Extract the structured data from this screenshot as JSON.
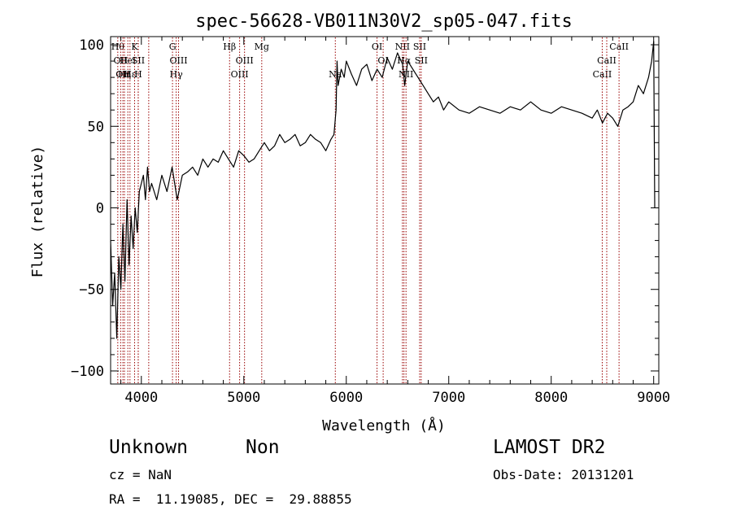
{
  "chart_data": {
    "type": "line",
    "title": "spec-56628-VB011N30V2_sp05-047.fits",
    "xlabel": "Wavelength (Å)",
    "ylabel": "Flux (relative)",
    "xlim": [
      3700,
      9050
    ],
    "ylim": [
      -108,
      105
    ],
    "xticks": [
      {
        "value": 4000,
        "label": "4000"
      },
      {
        "value": 5000,
        "label": "5000"
      },
      {
        "value": 6000,
        "label": "6000"
      },
      {
        "value": 7000,
        "label": "7000"
      },
      {
        "value": 8000,
        "label": "8000"
      },
      {
        "value": 9000,
        "label": "9000"
      }
    ],
    "yticks": [
      {
        "value": -100,
        "label": "−100"
      },
      {
        "value": -50,
        "label": "−50"
      },
      {
        "value": 0,
        "label": "0"
      },
      {
        "value": 50,
        "label": "50"
      },
      {
        "value": 100,
        "label": "100"
      }
    ],
    "line_color": "#000000",
    "marker_color": "#990000",
    "series": [
      {
        "x": [
          3700,
          3720,
          3740,
          3760,
          3780,
          3800,
          3820,
          3840,
          3860,
          3880,
          3900,
          3920,
          3940,
          3960,
          3980,
          4000,
          4020,
          4040,
          4060,
          4080,
          4100,
          4150,
          4200,
          4250,
          4300,
          4350,
          4400,
          4450,
          4500,
          4550,
          4600,
          4650,
          4700,
          4750,
          4800,
          4850,
          4900,
          4950,
          5000,
          5050,
          5100,
          5150,
          5200,
          5250,
          5300,
          5350,
          5400,
          5450,
          5500,
          5550,
          5600,
          5650,
          5700,
          5750,
          5800,
          5850,
          5880,
          5900,
          5910,
          5920,
          5950,
          5980,
          6000,
          6050,
          6100,
          6150,
          6200,
          6250,
          6300,
          6350,
          6400,
          6450,
          6500,
          6550,
          6570,
          6600,
          6650,
          6700,
          6750,
          6800,
          6850,
          6900,
          6950,
          7000,
          7100,
          7200,
          7300,
          7400,
          7500,
          7600,
          7700,
          7800,
          7900,
          8000,
          8100,
          8200,
          8300,
          8400,
          8450,
          8500,
          8550,
          8600,
          8650,
          8700,
          8750,
          8800,
          8850,
          8900,
          8950,
          8980,
          9000,
          9010
        ],
        "y": [
          -20,
          -60,
          -40,
          -80,
          -30,
          -50,
          -10,
          -45,
          5,
          -35,
          -5,
          -25,
          0,
          -15,
          10,
          15,
          20,
          5,
          25,
          10,
          15,
          5,
          20,
          10,
          25,
          5,
          20,
          22,
          25,
          20,
          30,
          25,
          30,
          28,
          35,
          30,
          25,
          35,
          32,
          28,
          30,
          35,
          40,
          35,
          38,
          45,
          40,
          42,
          45,
          38,
          40,
          45,
          42,
          40,
          35,
          42,
          45,
          60,
          90,
          75,
          85,
          80,
          90,
          82,
          75,
          85,
          88,
          78,
          85,
          80,
          92,
          85,
          95,
          88,
          75,
          90,
          85,
          80,
          75,
          70,
          65,
          68,
          60,
          65,
          60,
          58,
          62,
          60,
          58,
          62,
          60,
          65,
          60,
          58,
          62,
          60,
          58,
          55,
          60,
          52,
          58,
          55,
          50,
          60,
          62,
          65,
          75,
          70,
          80,
          90,
          102,
          0
        ]
      }
    ],
    "lines": [
      {
        "x": 3770,
        "label": "Hθ",
        "row": 0
      },
      {
        "x": 3798,
        "label": "OII",
        "row": 1
      },
      {
        "x": 3820,
        "label": "OII",
        "row": 2
      },
      {
        "x": 3835,
        "label": "Hη",
        "row": 2
      },
      {
        "x": 3868,
        "label": "HeI",
        "row": 1
      },
      {
        "x": 3889,
        "label": "Hε",
        "row": 2
      },
      {
        "x": 3934,
        "label": "K",
        "row": 0
      },
      {
        "x": 3970,
        "label": "SII",
        "row": 1
      },
      {
        "x": 3969,
        "label": "H",
        "row": 2
      },
      {
        "x": 4072,
        "label": "",
        "row": 0
      },
      {
        "x": 4304,
        "label": "G",
        "row": 0
      },
      {
        "x": 4340,
        "label": "Hγ",
        "row": 2
      },
      {
        "x": 4363,
        "label": "OIII",
        "row": 1
      },
      {
        "x": 4861,
        "label": "Hβ",
        "row": 0
      },
      {
        "x": 4959,
        "label": "OIII",
        "row": 2
      },
      {
        "x": 5007,
        "label": "OIII",
        "row": 1
      },
      {
        "x": 5175,
        "label": "Mg",
        "row": 0
      },
      {
        "x": 5893,
        "label": "Na",
        "row": 2
      },
      {
        "x": 6300,
        "label": "OI",
        "row": 0
      },
      {
        "x": 6360,
        "label": "OI",
        "row": 1
      },
      {
        "x": 6548,
        "label": "NII",
        "row": 0
      },
      {
        "x": 6563,
        "label": "Hα",
        "row": 1
      },
      {
        "x": 6583,
        "label": "NII",
        "row": 2
      },
      {
        "x": 6716,
        "label": "SII",
        "row": 0
      },
      {
        "x": 6731,
        "label": "SII",
        "row": 1
      },
      {
        "x": 8498,
        "label": "CaII",
        "row": 2
      },
      {
        "x": 8542,
        "label": "CaII",
        "row": 1
      },
      {
        "x": 8662,
        "label": "CaII",
        "row": 0
      }
    ]
  },
  "info": {
    "class": "Unknown",
    "subclass": "Non",
    "survey": "LAMOST DR2",
    "cz": "cz = NaN",
    "obs_date": "Obs-Date: 20131201",
    "coords": "RA =  11.19085, DEC =  29.88855"
  }
}
